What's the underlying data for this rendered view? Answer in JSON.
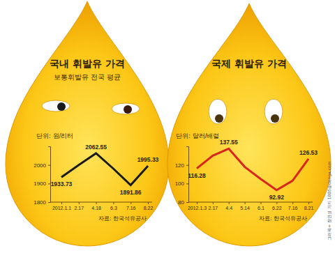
{
  "chart_data": [
    {
      "type": "line",
      "title": "국내 휘발유 가격",
      "subtitle": "보통휘발유 전국 평균",
      "y_label": "단위: 원/리터",
      "source": "자료: 한국석유공사",
      "categories": [
        "2012.1.1",
        "2.17",
        "4.18",
        "6.3",
        "7.16",
        "8.22"
      ],
      "values": [
        1933.73,
        2000,
        2062.55,
        1980,
        1891.86,
        1995.33
      ],
      "value_labels": [
        "1933.73",
        null,
        "2062.55",
        null,
        "1891.86",
        "1995.33"
      ],
      "color": "#1a1a1a",
      "ylim": [
        1800,
        2100
      ],
      "yticks": [
        1800,
        1900,
        2000
      ]
    },
    {
      "type": "line",
      "title": "국제 휘발유 가격",
      "y_label": "단위: 달러/배럴",
      "source": "자료: 한국석유공사",
      "categories": [
        "2012.1.3",
        "2.17",
        "4.4",
        "5.14",
        "6.1",
        "6.22",
        "7.16",
        "8.21"
      ],
      "values": [
        116.28,
        130,
        137.55,
        118,
        105,
        92.92,
        103,
        126.53
      ],
      "value_labels": [
        "116.28",
        null,
        "137.55",
        null,
        null,
        "92.92",
        null,
        "126.53"
      ],
      "color": "#d9261c",
      "ylim": [
        80,
        140
      ],
      "yticks": [
        80,
        100,
        120
      ]
    }
  ],
  "credit": "그래픽= 장인성 기자 1005@donga.com"
}
